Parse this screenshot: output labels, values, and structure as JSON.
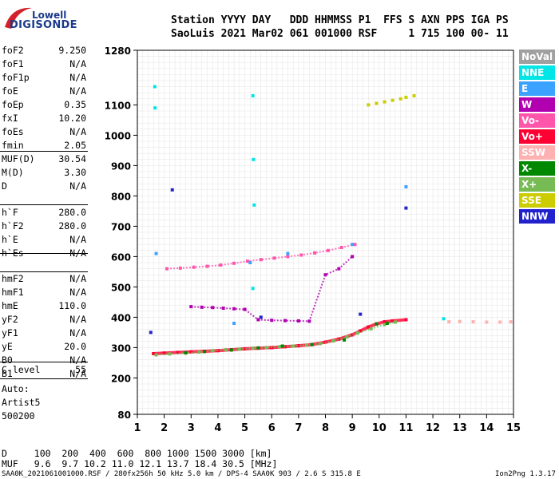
{
  "logo": {
    "line1": "Lowell",
    "line2": "DIGISONDE"
  },
  "header": {
    "row1": "Station YYYY DAY   DDD HHMMSS P1  FFS S AXN PPS IGA PS",
    "row2": "SaoLuis 2021 Mar02 061 001000 RSF     1 715 100 00- 11"
  },
  "params_group1": [
    {
      "key": "foF2",
      "value": "9.250"
    },
    {
      "key": "foF1",
      "value": "N/A"
    },
    {
      "key": "foF1p",
      "value": "N/A"
    },
    {
      "key": "foE",
      "value": "N/A"
    },
    {
      "key": "foEp",
      "value": "0.35"
    },
    {
      "key": "fxI",
      "value": "10.20"
    },
    {
      "key": "foEs",
      "value": "N/A"
    },
    {
      "key": "fmin",
      "value": "2.05"
    }
  ],
  "params_group2": [
    {
      "key": "MUF(D)",
      "value": "30.54"
    },
    {
      "key": "M(D)",
      "value": "3.30"
    },
    {
      "key": "D",
      "value": "N/A"
    }
  ],
  "params_group3": [
    {
      "key": "h`F",
      "value": "280.0"
    },
    {
      "key": "h`F2",
      "value": "280.0"
    },
    {
      "key": "h`E",
      "value": "N/A"
    },
    {
      "key": "h`Es",
      "value": "N/A"
    }
  ],
  "params_group4": [
    {
      "key": "hmF2",
      "value": "N/A"
    },
    {
      "key": "hmF1",
      "value": "N/A"
    },
    {
      "key": "hmE",
      "value": "110.0"
    },
    {
      "key": "yF2",
      "value": "N/A"
    },
    {
      "key": "yF1",
      "value": "N/A"
    },
    {
      "key": "yE",
      "value": "20.0"
    },
    {
      "key": "B0",
      "value": "N/A"
    },
    {
      "key": "B1",
      "value": "N/A"
    }
  ],
  "params_group5": [
    {
      "key": "C-level",
      "value": "55"
    }
  ],
  "auto": {
    "line1": "Auto:",
    "line2": "Artist5",
    "line3": "500200"
  },
  "legend": [
    {
      "label": "NoVal",
      "color": "#a0a0a0"
    },
    {
      "label": "NNE",
      "color": "#00e5e5"
    },
    {
      "label": "E",
      "color": "#3ba3ff"
    },
    {
      "label": "W",
      "color": "#b000b0"
    },
    {
      "label": "Vo-",
      "color": "#ff55aa"
    },
    {
      "label": "Vo+",
      "color": "#ff0033"
    },
    {
      "label": "SSW",
      "color": "#ffb0b0"
    },
    {
      "label": "X-",
      "color": "#008800"
    },
    {
      "label": "X+",
      "color": "#77bb55"
    },
    {
      "label": "SSE",
      "color": "#cccc00"
    },
    {
      "label": "NNW",
      "color": "#2222cc"
    }
  ],
  "footer": {
    "d_label": "D",
    "d_values": "   100  200  400  600  800 1000 1500 3000 [km]",
    "muf_label": "MUF",
    "muf_values": "   9.6  9.7 10.2 11.0 12.1 13.7 18.4 30.5 [MHz]",
    "bottom_left": "SAA0K_2021061001000.RSF / 280fx256h 50 kHz 5.0 km / DPS-4 SAA0K 903 / 2.6 S 315.8 E",
    "bottom_right": "Ion2Png 1.3.17"
  },
  "chart_data": {
    "type": "scatter",
    "x_ticks": [
      1,
      2,
      3,
      4,
      5,
      6,
      7,
      8,
      9,
      10,
      11,
      12,
      13,
      14,
      15
    ],
    "y_ticks": [
      80,
      200,
      300,
      400,
      500,
      600,
      700,
      800,
      900,
      1000,
      1100,
      1280
    ],
    "xlim": [
      1,
      15
    ],
    "ylim": [
      80,
      1280
    ],
    "grid": true,
    "legend_position": "right",
    "series": [
      {
        "name": "Vo+",
        "color": "#ff0033",
        "description": "F2 trace",
        "x": [
          1.6,
          2.0,
          2.5,
          3.0,
          3.5,
          4.0,
          4.5,
          5.0,
          5.5,
          6.0,
          6.5,
          7.0,
          7.5,
          8.0,
          8.5,
          9.0,
          9.3,
          9.6,
          9.9,
          10.2,
          10.5,
          11.0
        ],
        "y": [
          280,
          282,
          284,
          286,
          288,
          290,
          293,
          296,
          298,
          300,
          303,
          306,
          310,
          318,
          328,
          342,
          355,
          368,
          378,
          385,
          388,
          392
        ]
      },
      {
        "name": "X+",
        "color": "#77bb55",
        "x": [
          1.7,
          2.2,
          2.8,
          3.3,
          3.8,
          4.3,
          4.8,
          5.3,
          5.8,
          6.3,
          6.8,
          7.3,
          7.8,
          8.3,
          8.8,
          9.2,
          9.7,
          10.2,
          10.6
        ],
        "y": [
          276,
          279,
          282,
          285,
          290,
          293,
          295,
          298,
          300,
          303,
          305,
          308,
          313,
          322,
          335,
          348,
          362,
          376,
          384
        ]
      },
      {
        "name": "W",
        "color": "#b000b0",
        "x": [
          3.0,
          3.4,
          3.8,
          4.2,
          4.6,
          5.0,
          5.5,
          6.0,
          6.5,
          7.0,
          7.4,
          8.0,
          8.5,
          9.0
        ],
        "y": [
          435,
          433,
          432,
          430,
          428,
          426,
          392,
          390,
          389,
          388,
          387,
          540,
          560,
          600
        ]
      },
      {
        "name": "Vo-",
        "color": "#ff55aa",
        "x": [
          2.1,
          2.6,
          3.1,
          3.6,
          4.1,
          4.6,
          5.1,
          5.6,
          6.1,
          6.6,
          7.1,
          7.6,
          8.1,
          8.6,
          9.1
        ],
        "y": [
          560,
          562,
          565,
          568,
          572,
          578,
          585,
          590,
          595,
          600,
          605,
          612,
          620,
          630,
          640
        ]
      },
      {
        "name": "SSE",
        "color": "#cccc00",
        "x": [
          9.6,
          9.9,
          10.2,
          10.5,
          10.8,
          11.0,
          11.3
        ],
        "y": [
          1100,
          1105,
          1110,
          1115,
          1120,
          1125,
          1130
        ]
      },
      {
        "name": "NNE",
        "color": "#00e5e5",
        "x": [
          1.65,
          1.66,
          5.3,
          5.32,
          5.35,
          5.3,
          12.4
        ],
        "y": [
          1160,
          1090,
          1130,
          920,
          770,
          495,
          395
        ]
      },
      {
        "name": "E",
        "color": "#3ba3ff",
        "x": [
          1.7,
          4.6,
          5.2,
          6.6,
          9.0,
          11.0
        ],
        "y": [
          610,
          380,
          580,
          610,
          640,
          830
        ]
      },
      {
        "name": "X-",
        "color": "#008800",
        "x": [
          2.8,
          3.5,
          4.5,
          5.5,
          6.4,
          7.5,
          8.7,
          9.9,
          10.3
        ],
        "y": [
          283,
          287,
          292,
          299,
          305,
          310,
          325,
          378,
          380
        ]
      },
      {
        "name": "SSW",
        "color": "#ffb0b0",
        "x": [
          12.6,
          13.0,
          13.5,
          14.0,
          14.5,
          14.9
        ],
        "y": [
          385,
          386,
          385,
          384,
          384,
          385
        ]
      },
      {
        "name": "NNW",
        "color": "#2222cc",
        "x": [
          1.5,
          2.3,
          5.6,
          9.3,
          11.0
        ],
        "y": [
          350,
          820,
          400,
          410,
          760
        ]
      }
    ]
  }
}
